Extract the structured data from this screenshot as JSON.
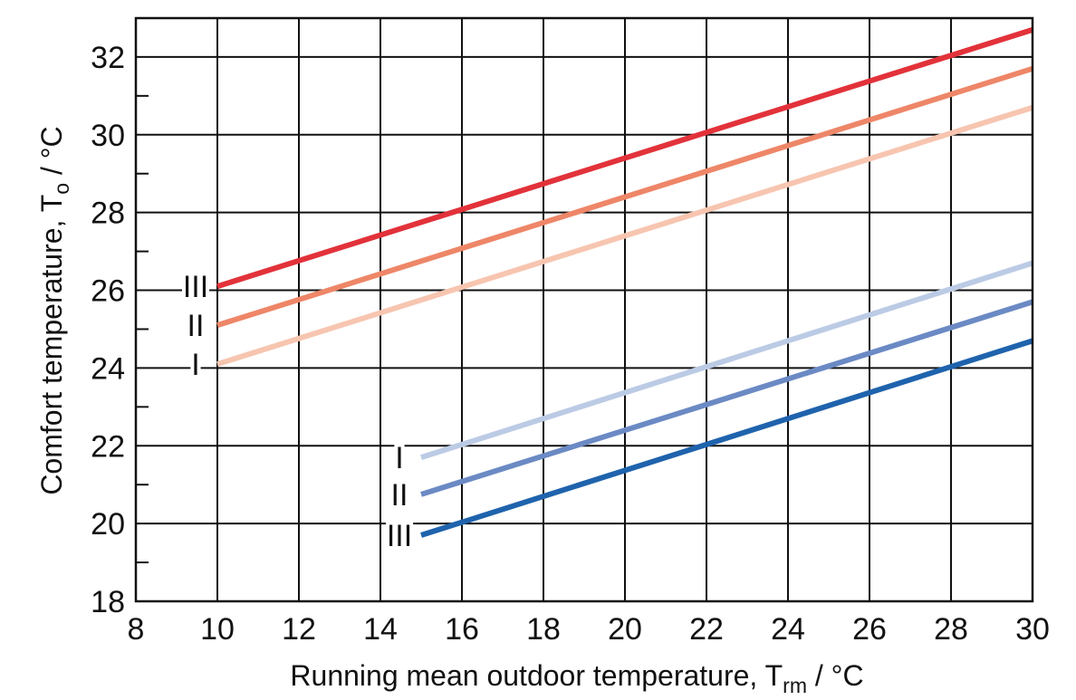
{
  "chart_data": {
    "type": "line",
    "xlabel": "Running mean outdoor temperature, T",
    "xlabel_sub": "rm",
    "xlabel_unit": " / °C",
    "ylabel": "Comfort temperature, T",
    "ylabel_sub": "o",
    "ylabel_unit": " / °C",
    "xlim": [
      8,
      30
    ],
    "ylim": [
      18,
      33
    ],
    "x_ticks": [
      "8",
      "10",
      "12",
      "14",
      "16",
      "18",
      "20",
      "22",
      "24",
      "26",
      "28",
      "30"
    ],
    "y_ticks": [
      "18",
      "20",
      "22",
      "24",
      "26",
      "28",
      "30",
      "32"
    ],
    "grid": true,
    "colors": {
      "upper_III": "#e2323a",
      "upper_II": "#ee8668",
      "upper_I": "#f7c5b0",
      "lower_I": "#bccbe5",
      "lower_II": "#6b8ac4",
      "lower_III": "#1f63ad"
    },
    "series": [
      {
        "key": "upper_III",
        "label": "III",
        "x": [
          10,
          30
        ],
        "y": [
          26.1,
          32.7
        ]
      },
      {
        "key": "upper_II",
        "label": "II",
        "x": [
          10,
          30
        ],
        "y": [
          25.1,
          31.7
        ]
      },
      {
        "key": "upper_I",
        "label": "I",
        "x": [
          10,
          30
        ],
        "y": [
          24.1,
          30.7
        ]
      },
      {
        "key": "lower_I",
        "label": "I",
        "x": [
          15,
          30
        ],
        "y": [
          21.7,
          26.7
        ]
      },
      {
        "key": "lower_II",
        "label": "II",
        "x": [
          15,
          30
        ],
        "y": [
          20.75,
          25.7
        ]
      },
      {
        "key": "lower_III",
        "label": "III",
        "x": [
          15,
          30
        ],
        "y": [
          19.7,
          24.7
        ]
      }
    ]
  }
}
